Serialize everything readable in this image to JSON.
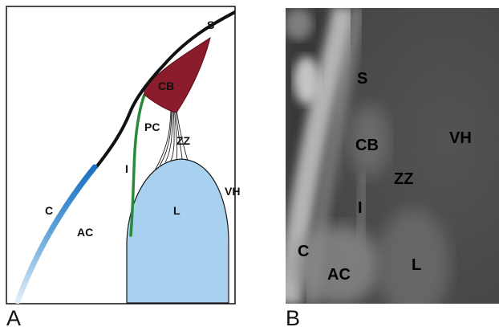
{
  "figure": {
    "panel_a": {
      "letter": "A",
      "labels": {
        "s": "S",
        "cb": "CB",
        "pc": "PC",
        "zz": "ZZ",
        "i": "I",
        "vh": "VH",
        "l": "L",
        "c": "C",
        "ac": "AC"
      },
      "colors": {
        "frame": "#111111",
        "sclera_line": "#111111",
        "ciliary_body": "#8a1c2c",
        "lens": "#a7d1ee",
        "iris_line": "#2a8a3c",
        "cornea_top": "#1a6fbf",
        "cornea_bottom": "#d7e8f6",
        "zonules": "#222222"
      }
    },
    "panel_b": {
      "letter": "B",
      "labels": {
        "s": "S",
        "cb": "CB",
        "vh": "VH",
        "zz": "ZZ",
        "i": "I",
        "c": "C",
        "ac": "AC",
        "l": "L"
      }
    }
  }
}
